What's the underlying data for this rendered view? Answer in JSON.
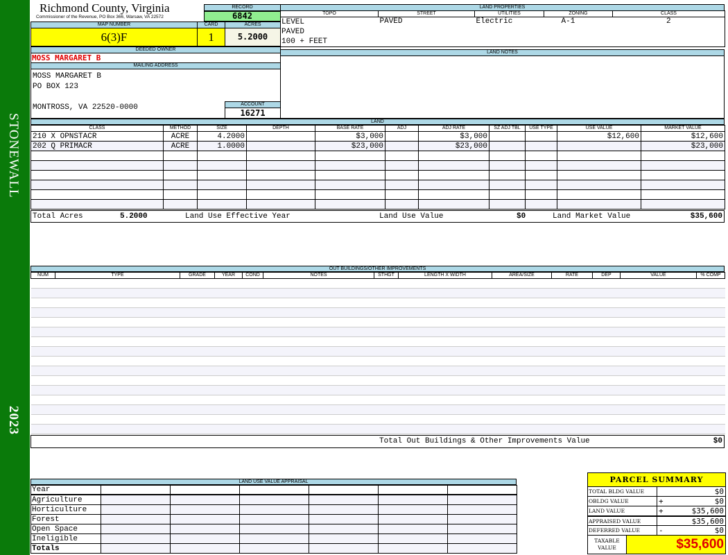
{
  "sidebar": {
    "district": "STONEWALL",
    "year": "2023",
    "color": "#0a7a0a"
  },
  "header": {
    "county": "Richmond County, Virginia",
    "office": "Commissioner of the Revenue, PO Box 366, Warsaw, VA 22572"
  },
  "record": {
    "label": "RECORD",
    "value": "6842"
  },
  "map": {
    "label": "MAP NUMBER",
    "value": "6(3)F"
  },
  "card": {
    "label": "CARD",
    "value": "1"
  },
  "acres": {
    "label": "ACRES",
    "value": "5.2000"
  },
  "owner": {
    "label": "DEEDED OWNER",
    "value": "MOSS MARGARET B"
  },
  "mailing": {
    "label": "MAILING ADDRESS",
    "lines": [
      "MOSS MARGARET B",
      "PO BOX 123",
      "",
      "MONTROSS, VA 22520-0000"
    ]
  },
  "account": {
    "label": "ACCOUNT",
    "value": "16271"
  },
  "land_properties": {
    "label": "LAND PROPERTIES",
    "headers": [
      "TOPO",
      "STREET",
      "UTILITIES",
      "ZONING",
      "CLASS"
    ],
    "topo": [
      "LEVEL",
      "PAVED",
      "100 + FEET"
    ],
    "street": "PAVED",
    "utilities": "Electric",
    "zoning": "A-1",
    "class": "2"
  },
  "land_notes": {
    "label": "LAND NOTES"
  },
  "land": {
    "label": "LAND",
    "headers": [
      "CLASS",
      "METHOD",
      "SIZE",
      "DEPTH",
      "BASE RATE",
      "ADJ",
      "ADJ RATE",
      "SZ ADJ TBL",
      "USE TYPE",
      "USE VALUE",
      "MARKET VALUE"
    ],
    "rows": [
      [
        "210 X OPNSTACR",
        "ACRE",
        "4.2000",
        "",
        "$3,000",
        "",
        "$3,000",
        "",
        "",
        "$12,600",
        "$12,600"
      ],
      [
        "202 Q PRIMACR",
        "ACRE",
        "1.0000",
        "",
        "$23,000",
        "",
        "$23,000",
        "",
        "",
        "",
        "$23,000"
      ]
    ],
    "totals": {
      "total_acres_label": "Total Acres",
      "total_acres": "5.2000",
      "effective_year_label": "Land Use Effective Year",
      "use_value_label": "Land Use Value",
      "use_value": "$0",
      "market_value_label": "Land Market Value",
      "market_value": "$35,600"
    }
  },
  "outbuildings": {
    "label": "OUT BUILDINGS/OTHER IMPROVEMENTS",
    "headers": [
      "NUM",
      "TYPE",
      "GRADE",
      "YEAR",
      "COND",
      "NOTES",
      "STHGT",
      "LENGTH X WIDTH",
      "AREA/SIZE",
      "RATE",
      "DEP",
      "VALUE",
      "% COMP"
    ],
    "total_label": "Total Out Buildings & Other Improvements Value",
    "total": "$0"
  },
  "land_use": {
    "label": "LAND USE VALUE APPRAISAL",
    "year_label": "Year",
    "rows": [
      "Agriculture",
      "Horticulture",
      "Forest",
      "Open Space",
      "Ineligible"
    ],
    "totals_label": "Totals"
  },
  "summary": {
    "title": "PARCEL SUMMARY",
    "rows": [
      {
        "label": "TOTAL BLDG VALUE",
        "op": "",
        "value": "$0"
      },
      {
        "label": "OBLDG VALUE",
        "op": "+",
        "value": "$0"
      },
      {
        "label": "LAND VALUE",
        "op": "+",
        "value": "$35,600"
      },
      {
        "label": "APPRAISED VALUE",
        "op": "",
        "value": "$35,600"
      },
      {
        "label": "DEFERRED VALUE",
        "op": "-",
        "value": "$0"
      }
    ],
    "taxable_label": "TAXABLE VALUE",
    "taxable": "$35,600"
  }
}
